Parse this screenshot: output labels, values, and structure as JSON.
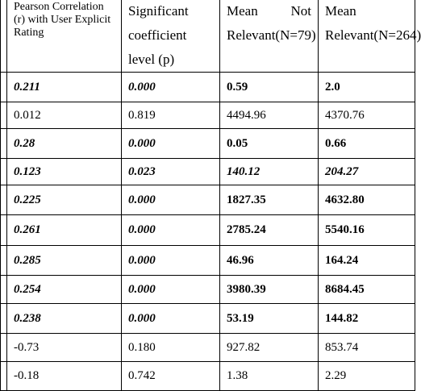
{
  "table": {
    "header": [
      "Pearson Correlation (r) with User Explicit Rating",
      "Significant coefficient level (p)",
      "Mean Not Relevant(N=79)",
      "Mean Relevant(N=264)"
    ],
    "rows": [
      [
        "0.211",
        "0.000",
        "0.59",
        "2.0"
      ],
      [
        "0.012",
        "0.819",
        "4494.96",
        "4370.76"
      ],
      [
        "0.28",
        "0.000",
        "0.05",
        "0.66"
      ],
      [
        "0.123",
        "0.023",
        "140.12",
        "204.27"
      ],
      [
        "0.225",
        "0.000",
        "1827.35",
        "4632.80"
      ],
      [
        "0.261",
        "0.000",
        "2785.24",
        "5540.16"
      ],
      [
        "0.285",
        "0.000",
        "46.96",
        "164.24"
      ],
      [
        "0.254",
        "0.000",
        "3980.39",
        "8684.45"
      ],
      [
        "0.238",
        "0.000",
        "53.19",
        "144.82"
      ],
      [
        "-0.73",
        "0.180",
        "927.82",
        "853.74"
      ],
      [
        "-0.18",
        "0.742",
        "1.38",
        "2.29"
      ]
    ]
  }
}
